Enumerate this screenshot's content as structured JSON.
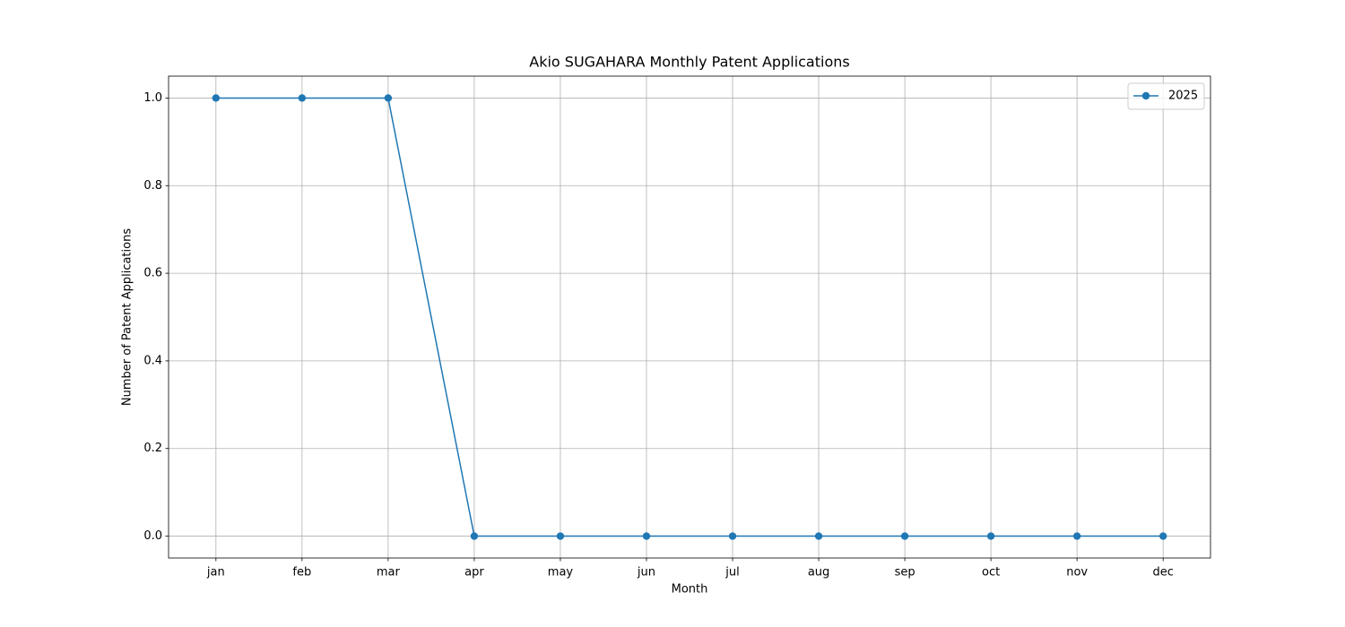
{
  "chart_data": {
    "type": "line",
    "title": "Akio SUGAHARA Monthly Patent Applications",
    "x_label": "Month",
    "y_label": "Number of Patent Applications",
    "categories": [
      "jan",
      "feb",
      "mar",
      "apr",
      "may",
      "jun",
      "jul",
      "aug",
      "sep",
      "oct",
      "nov",
      "dec"
    ],
    "series": [
      {
        "name": "2025",
        "color": "#1f77b4",
        "values": [
          1,
          1,
          1,
          0,
          0,
          0,
          0,
          0,
          0,
          0,
          0,
          0
        ]
      }
    ],
    "ylim": [
      -0.05,
      1.05
    ],
    "yticks": [
      {
        "value": 0,
        "label": "0.0"
      },
      0.2,
      0.4,
      0.6,
      0.8,
      {
        "value": 1,
        "label": "1.0"
      }
    ],
    "grid": true,
    "legend": "upper right"
  }
}
